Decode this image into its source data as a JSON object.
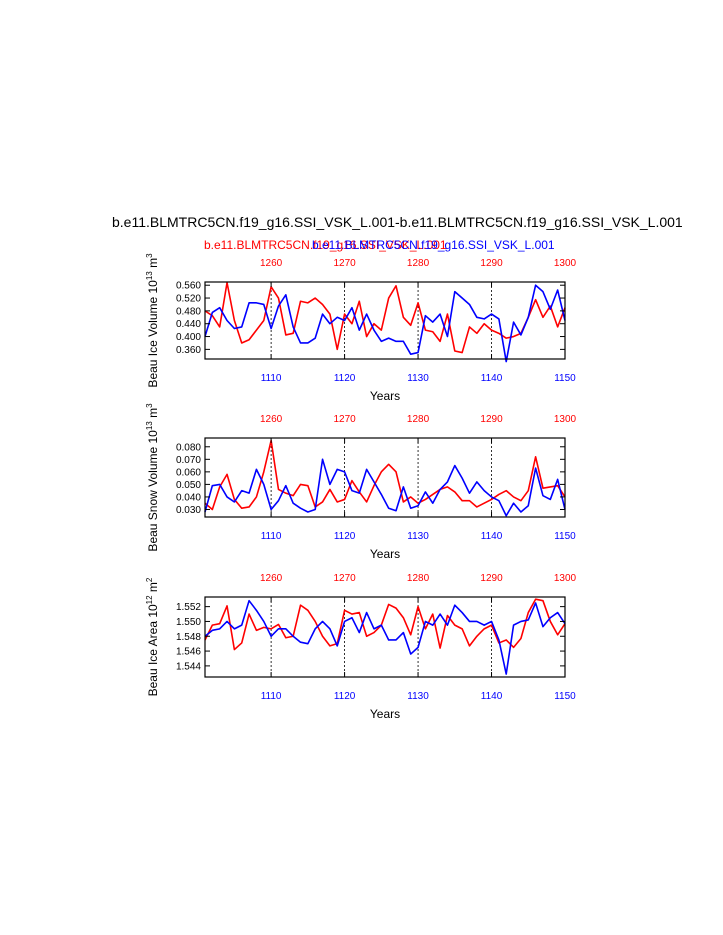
{
  "header": {
    "main_title": "b.e11.BLMTRC5CN.f19_g16.SSI_VSK_L.001-b.e11.BLMTRC5CN.f19_g16.SSI_VSK_L.001",
    "red_label": "b.e11.BLMTRC5CN.f19_g16.SSI_VSK_L.001",
    "blue_label": "b.e11.BLMTRC5CN.f19_g16.SSI_VSK_L.001"
  },
  "colors": {
    "red": "#ff0000",
    "blue": "#0000ff",
    "axis": "#000000",
    "grid": "#000000"
  },
  "chart_data": [
    {
      "type": "line",
      "ylabel": "Beau Ice Volume 10^13 m^3",
      "xlabel": "Years",
      "ylim": [
        0.33,
        0.57
      ],
      "yticks": [
        "0.360",
        "0.400",
        "0.440",
        "0.480",
        "0.520",
        "0.560"
      ],
      "bottom_axis": {
        "range": [
          1101,
          1150
        ],
        "ticks": [
          "1110",
          "1120",
          "1130",
          "1140",
          "1150"
        ]
      },
      "top_axis": {
        "range": [
          1251,
          1300
        ],
        "ticks": [
          "1260",
          "1270",
          "1280",
          "1290",
          "1300"
        ]
      },
      "grid": "dashed vertical at labeled ticks",
      "series": [
        {
          "color": "red",
          "x_axis": "top",
          "values": [
            0.48,
            0.465,
            0.43,
            0.568,
            0.45,
            0.38,
            0.39,
            0.42,
            0.45,
            0.555,
            0.52,
            0.405,
            0.41,
            0.51,
            0.505,
            0.52,
            0.5,
            0.47,
            0.36,
            0.47,
            0.44,
            0.51,
            0.4,
            0.44,
            0.42,
            0.52,
            0.558,
            0.46,
            0.435,
            0.505,
            0.42,
            0.415,
            0.385,
            0.47,
            0.355,
            0.35,
            0.43,
            0.41,
            0.44,
            0.42,
            0.41,
            0.395,
            0.4,
            0.41,
            0.46,
            0.515,
            0.46,
            0.495,
            0.43,
            0.49
          ]
        },
        {
          "color": "blue",
          "x_axis": "bottom",
          "values": [
            0.4,
            0.475,
            0.49,
            0.45,
            0.425,
            0.43,
            0.505,
            0.505,
            0.5,
            0.425,
            0.495,
            0.53,
            0.43,
            0.38,
            0.38,
            0.395,
            0.47,
            0.44,
            0.46,
            0.45,
            0.49,
            0.42,
            0.47,
            0.42,
            0.385,
            0.395,
            0.385,
            0.385,
            0.345,
            0.35,
            0.465,
            0.445,
            0.47,
            0.4,
            0.54,
            0.52,
            0.5,
            0.46,
            0.455,
            0.47,
            0.455,
            0.322,
            0.445,
            0.405,
            0.46,
            0.56,
            0.54,
            0.485,
            0.545,
            0.45
          ]
        }
      ]
    },
    {
      "type": "line",
      "ylabel": "Beau Snow Volume 10^13 m^3",
      "xlabel": "Years",
      "ylim": [
        0.024,
        0.087
      ],
      "yticks": [
        "0.030",
        "0.040",
        "0.050",
        "0.060",
        "0.070",
        "0.080"
      ],
      "bottom_axis": {
        "range": [
          1101,
          1150
        ],
        "ticks": [
          "1110",
          "1120",
          "1130",
          "1140",
          "1150"
        ]
      },
      "top_axis": {
        "range": [
          1251,
          1300
        ],
        "ticks": [
          "1260",
          "1270",
          "1280",
          "1290",
          "1300"
        ]
      },
      "grid": "dashed vertical at labeled ticks",
      "series": [
        {
          "color": "red",
          "x_axis": "top",
          "values": [
            0.035,
            0.03,
            0.048,
            0.058,
            0.038,
            0.031,
            0.032,
            0.04,
            0.06,
            0.085,
            0.046,
            0.043,
            0.041,
            0.05,
            0.049,
            0.032,
            0.036,
            0.046,
            0.036,
            0.038,
            0.053,
            0.044,
            0.036,
            0.049,
            0.06,
            0.066,
            0.06,
            0.036,
            0.04,
            0.035,
            0.038,
            0.042,
            0.046,
            0.048,
            0.044,
            0.037,
            0.037,
            0.032,
            0.035,
            0.038,
            0.042,
            0.045,
            0.04,
            0.037,
            0.045,
            0.072,
            0.047,
            0.048,
            0.049,
            0.04
          ]
        },
        {
          "color": "blue",
          "x_axis": "bottom",
          "values": [
            0.028,
            0.049,
            0.05,
            0.04,
            0.036,
            0.045,
            0.043,
            0.062,
            0.05,
            0.03,
            0.037,
            0.049,
            0.035,
            0.031,
            0.028,
            0.03,
            0.07,
            0.05,
            0.062,
            0.06,
            0.045,
            0.043,
            0.062,
            0.052,
            0.042,
            0.031,
            0.029,
            0.048,
            0.031,
            0.033,
            0.044,
            0.035,
            0.046,
            0.052,
            0.065,
            0.055,
            0.043,
            0.052,
            0.045,
            0.04,
            0.037,
            0.025,
            0.035,
            0.028,
            0.033,
            0.063,
            0.041,
            0.038,
            0.054,
            0.03
          ]
        }
      ]
    },
    {
      "type": "line",
      "ylabel": "Beau Ice Area 10^12 m^2",
      "xlabel": "Years",
      "ylim": [
        1.5425,
        1.5533
      ],
      "yticks": [
        "1.544",
        "1.546",
        "1.548",
        "1.550",
        "1.552"
      ],
      "bottom_axis": {
        "range": [
          1101,
          1150
        ],
        "ticks": [
          "1110",
          "1120",
          "1130",
          "1140",
          "1150"
        ]
      },
      "top_axis": {
        "range": [
          1251,
          1300
        ],
        "ticks": [
          "1260",
          "1270",
          "1280",
          "1290",
          "1300"
        ]
      },
      "grid": "dashed vertical at labeled ticks",
      "series": [
        {
          "color": "red",
          "x_axis": "top",
          "values": [
            1.5475,
            1.5495,
            1.5497,
            1.5521,
            1.5462,
            1.5471,
            1.551,
            1.5488,
            1.5492,
            1.549,
            1.5496,
            1.5478,
            1.548,
            1.5522,
            1.5515,
            1.55,
            1.548,
            1.5467,
            1.547,
            1.5515,
            1.551,
            1.5512,
            1.548,
            1.5485,
            1.5495,
            1.5523,
            1.5518,
            1.5505,
            1.5482,
            1.552,
            1.549,
            1.551,
            1.5464,
            1.5508,
            1.5495,
            1.549,
            1.5467,
            1.548,
            1.549,
            1.5495,
            1.5471,
            1.5475,
            1.5465,
            1.5477,
            1.5512,
            1.553,
            1.5528,
            1.55,
            1.5482,
            1.5497
          ]
        },
        {
          "color": "blue",
          "x_axis": "bottom",
          "values": [
            1.548,
            1.5488,
            1.549,
            1.55,
            1.549,
            1.5495,
            1.5528,
            1.5515,
            1.55,
            1.548,
            1.549,
            1.549,
            1.548,
            1.5472,
            1.547,
            1.549,
            1.55,
            1.549,
            1.5467,
            1.55,
            1.5505,
            1.5485,
            1.5512,
            1.549,
            1.5495,
            1.5475,
            1.5475,
            1.5485,
            1.5456,
            1.5465,
            1.55,
            1.5495,
            1.551,
            1.5495,
            1.5522,
            1.5512,
            1.55,
            1.55,
            1.5495,
            1.55,
            1.5475,
            1.5429,
            1.5495,
            1.55,
            1.5502,
            1.5525,
            1.5493,
            1.5505,
            1.5512,
            1.5497
          ]
        }
      ]
    }
  ]
}
